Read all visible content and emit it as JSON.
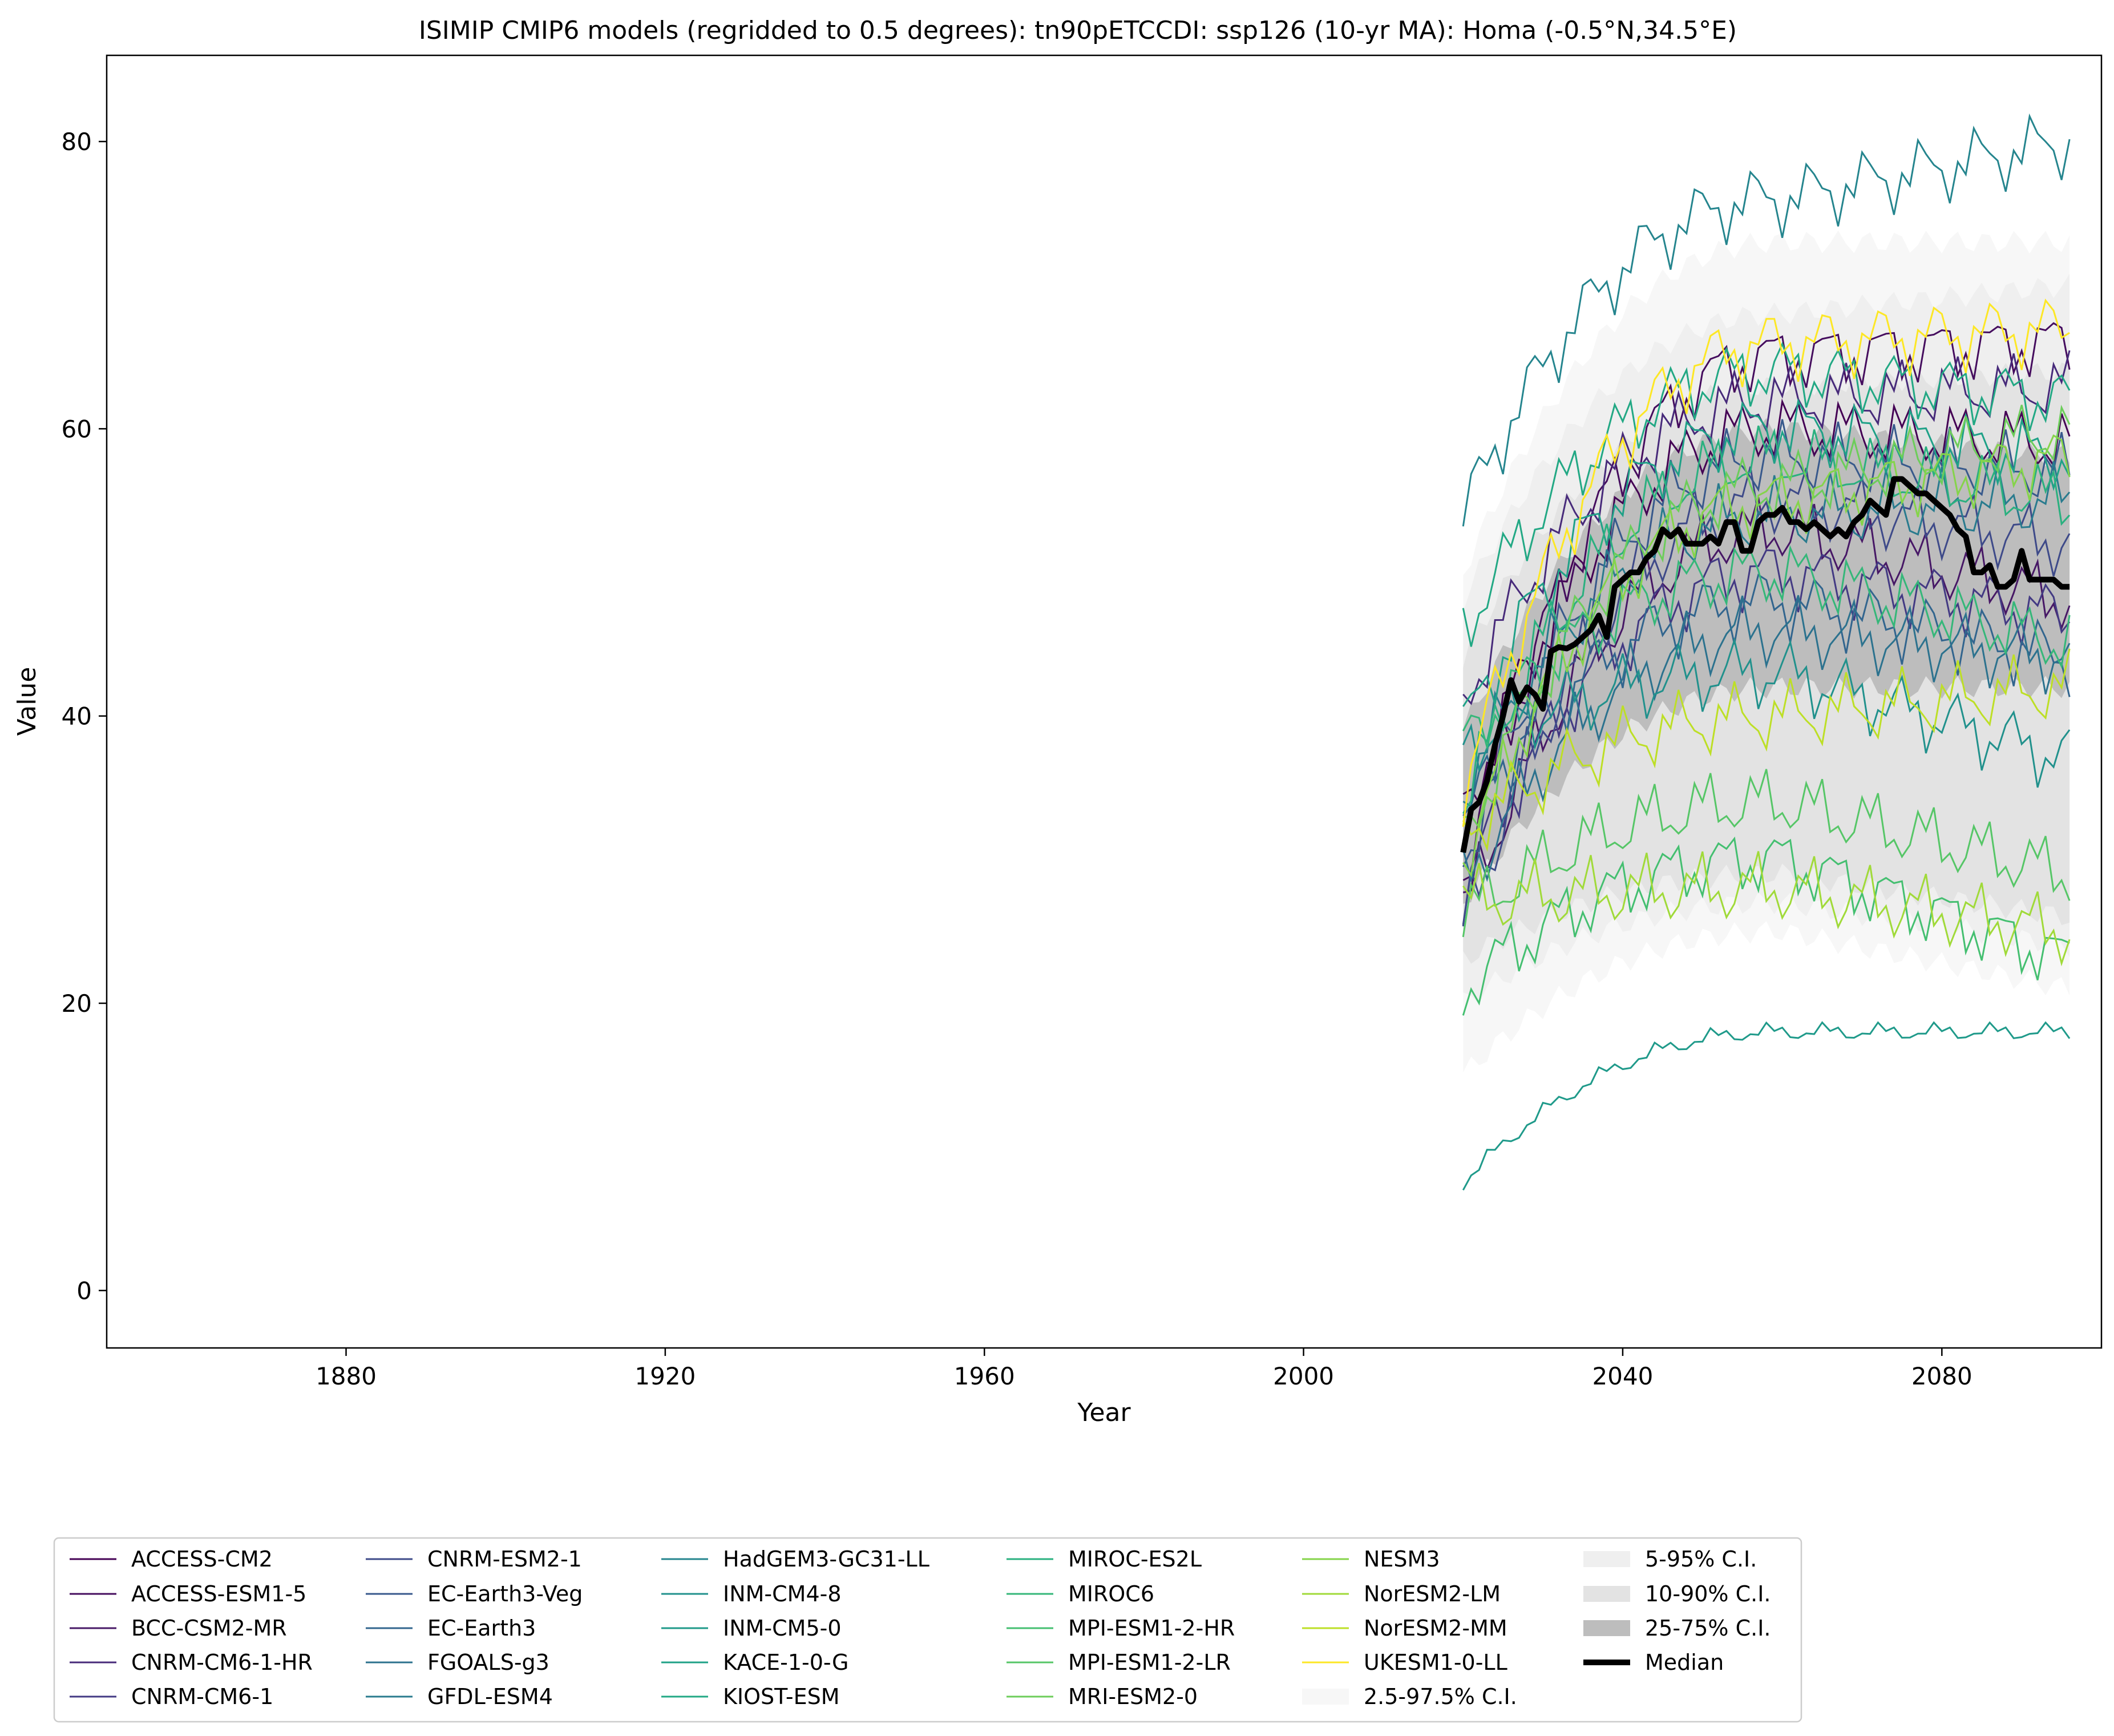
{
  "chart_data": {
    "type": "line",
    "title": "ISIMIP CMIP6 models (regridded to 0.5 degrees): tn90pETCCDI: ssp126 (10-yr MA): Homa (-0.5°N,34.5°E)",
    "xlabel": "Year",
    "ylabel": "Value",
    "xlim": [
      1850,
      2100
    ],
    "ylim": [
      -4,
      86
    ],
    "xticks": [
      1880,
      1920,
      1960,
      2000,
      2040,
      2080
    ],
    "yticks": [
      0,
      20,
      40,
      60,
      80
    ],
    "grid": false,
    "legend_position": "bottom",
    "x_range": [
      2020,
      2096
    ],
    "series": [
      {
        "name": "ACCESS-CM2",
        "color": "#440154",
        "start": 33,
        "plateau": 60,
        "end": 59
      },
      {
        "name": "ACCESS-ESM1-5",
        "color": "#450d5e",
        "start": 29,
        "plateau": 65,
        "end": 66
      },
      {
        "name": "BCC-CSM2-MR",
        "color": "#471866",
        "start": 26,
        "plateau": 53,
        "end": 48
      },
      {
        "name": "CNRM-CM6-1-HR",
        "color": "#472a7a",
        "start": 41,
        "plateau": 62,
        "end": 63
      },
      {
        "name": "CNRM-CM6-1",
        "color": "#433a83",
        "start": 28,
        "plateau": 50,
        "end": 47
      },
      {
        "name": "CNRM-ESM2-1",
        "color": "#3e4a89",
        "start": 25,
        "plateau": 55,
        "end": 52
      },
      {
        "name": "EC-Earth3-Veg",
        "color": "#38598c",
        "start": 30,
        "plateau": 58,
        "end": 57
      },
      {
        "name": "EC-Earth3",
        "color": "#32658e",
        "start": 33,
        "plateau": 48,
        "end": 44
      },
      {
        "name": "FGOALS-g3",
        "color": "#2c728e",
        "start": 28,
        "plateau": 46,
        "end": 44
      },
      {
        "name": "GFDL-ESM4",
        "color": "#297b8e",
        "start": 35,
        "plateau": 54,
        "end": 55
      },
      {
        "name": "HadGEM3-GC31-LL",
        "color": "#25858e",
        "start": 54,
        "plateau": 76,
        "end": 80
      },
      {
        "name": "INM-CM4-8",
        "color": "#21918c",
        "start": 38,
        "plateau": 43,
        "end": 37
      },
      {
        "name": "INM-CM5-0",
        "color": "#1f9a8a",
        "start": 7.5,
        "plateau": 18,
        "end": 18
      },
      {
        "name": "KACE-1-0-G",
        "color": "#1fa187",
        "start": 39,
        "plateau": 60,
        "end": 58
      },
      {
        "name": "KIOST-ESM",
        "color": "#22a884",
        "start": 46,
        "plateau": 64,
        "end": 62
      },
      {
        "name": "MIROC-ES2L",
        "color": "#2ab07f",
        "start": 34,
        "plateau": 58,
        "end": 55
      },
      {
        "name": "MIROC6",
        "color": "#35b779",
        "start": 38,
        "plateau": 50,
        "end": 45
      },
      {
        "name": "MPI-ESM1-2-HR",
        "color": "#44bf70",
        "start": 21,
        "plateau": 30,
        "end": 23
      },
      {
        "name": "MPI-ESM1-2-LR",
        "color": "#56c667",
        "start": 26,
        "plateau": 34,
        "end": 29
      },
      {
        "name": "MRI-ESM2-0",
        "color": "#6ccd5a",
        "start": 31,
        "plateau": 56,
        "end": 60
      },
      {
        "name": "NESM3",
        "color": "#85d44a",
        "start": 30,
        "plateau": 55,
        "end": 58
      },
      {
        "name": "NorESM2-LM",
        "color": "#a0da39",
        "start": 27,
        "plateau": 28,
        "end": 25
      },
      {
        "name": "NorESM2-MM",
        "color": "#bddf26",
        "start": 32,
        "plateau": 40,
        "end": 42
      },
      {
        "name": "UKESM1-0-LL",
        "color": "#fde725",
        "start": 35,
        "plateau": 66,
        "end": 67
      }
    ],
    "ci_bands": [
      {
        "name": "2.5-97.5% C.I.",
        "color": "#f7f7f7",
        "lower_start": 15,
        "lower_mid": 25,
        "lower_end": 21,
        "upper_start": 50,
        "upper_mid": 73,
        "upper_end": 73
      },
      {
        "name": "5-95% C.I.",
        "color": "#efefef",
        "lower_start": 20,
        "lower_mid": 27,
        "lower_end": 24,
        "upper_start": 48,
        "upper_mid": 68,
        "upper_end": 70
      },
      {
        "name": "10-90% C.I.",
        "color": "#e3e3e3",
        "lower_start": 23,
        "lower_mid": 29,
        "lower_end": 26,
        "upper_start": 44,
        "upper_mid": 63,
        "upper_end": 64
      },
      {
        "name": "25-75% C.I.",
        "color": "#bdbdbd",
        "lower_start": 27,
        "lower_mid": 42,
        "lower_end": 42,
        "upper_start": 39,
        "upper_mid": 60,
        "upper_end": 58
      }
    ],
    "median": {
      "name": "Median",
      "color": "#000000",
      "points": [
        [
          2020,
          30.5
        ],
        [
          2021,
          33.5
        ],
        [
          2022,
          34
        ],
        [
          2023,
          35.5
        ],
        [
          2024,
          38
        ],
        [
          2025,
          40
        ],
        [
          2026,
          42.5
        ],
        [
          2027,
          41
        ],
        [
          2028,
          42
        ],
        [
          2029,
          41.5
        ],
        [
          2030,
          40.5
        ],
        [
          2031,
          44.5
        ],
        [
          2032,
          44.8
        ],
        [
          2033,
          44.7
        ],
        [
          2034,
          45
        ],
        [
          2035,
          45.5
        ],
        [
          2036,
          46
        ],
        [
          2037,
          47
        ],
        [
          2038,
          45.5
        ],
        [
          2039,
          49
        ],
        [
          2040,
          49.5
        ],
        [
          2041,
          50
        ],
        [
          2042,
          50
        ],
        [
          2043,
          51
        ],
        [
          2044,
          51.5
        ],
        [
          2045,
          53
        ],
        [
          2046,
          52.5
        ],
        [
          2047,
          53
        ],
        [
          2048,
          52
        ],
        [
          2049,
          52
        ],
        [
          2050,
          52
        ],
        [
          2051,
          52.5
        ],
        [
          2052,
          52
        ],
        [
          2053,
          53.5
        ],
        [
          2054,
          53.5
        ],
        [
          2055,
          51.5
        ],
        [
          2056,
          51.5
        ],
        [
          2057,
          53.5
        ],
        [
          2058,
          54
        ],
        [
          2059,
          54
        ],
        [
          2060,
          54.5
        ],
        [
          2061,
          53.5
        ],
        [
          2062,
          53.5
        ],
        [
          2063,
          53
        ],
        [
          2064,
          53.5
        ],
        [
          2065,
          53
        ],
        [
          2066,
          52.5
        ],
        [
          2067,
          53
        ],
        [
          2068,
          52.5
        ],
        [
          2069,
          53.5
        ],
        [
          2070,
          54
        ],
        [
          2071,
          55
        ],
        [
          2072,
          54.5
        ],
        [
          2073,
          54
        ],
        [
          2074,
          56.5
        ],
        [
          2075,
          56.5
        ],
        [
          2076,
          56
        ],
        [
          2077,
          55.5
        ],
        [
          2078,
          55.5
        ],
        [
          2079,
          55
        ],
        [
          2080,
          54.5
        ],
        [
          2081,
          54
        ],
        [
          2082,
          53
        ],
        [
          2083,
          52.5
        ],
        [
          2084,
          50
        ],
        [
          2085,
          50
        ],
        [
          2086,
          50.5
        ],
        [
          2087,
          49
        ],
        [
          2088,
          49
        ],
        [
          2089,
          49.5
        ],
        [
          2090,
          51.5
        ],
        [
          2091,
          49.5
        ],
        [
          2092,
          49.5
        ],
        [
          2093,
          49.5
        ],
        [
          2094,
          49.5
        ],
        [
          2095,
          49
        ],
        [
          2096,
          49
        ]
      ]
    }
  }
}
